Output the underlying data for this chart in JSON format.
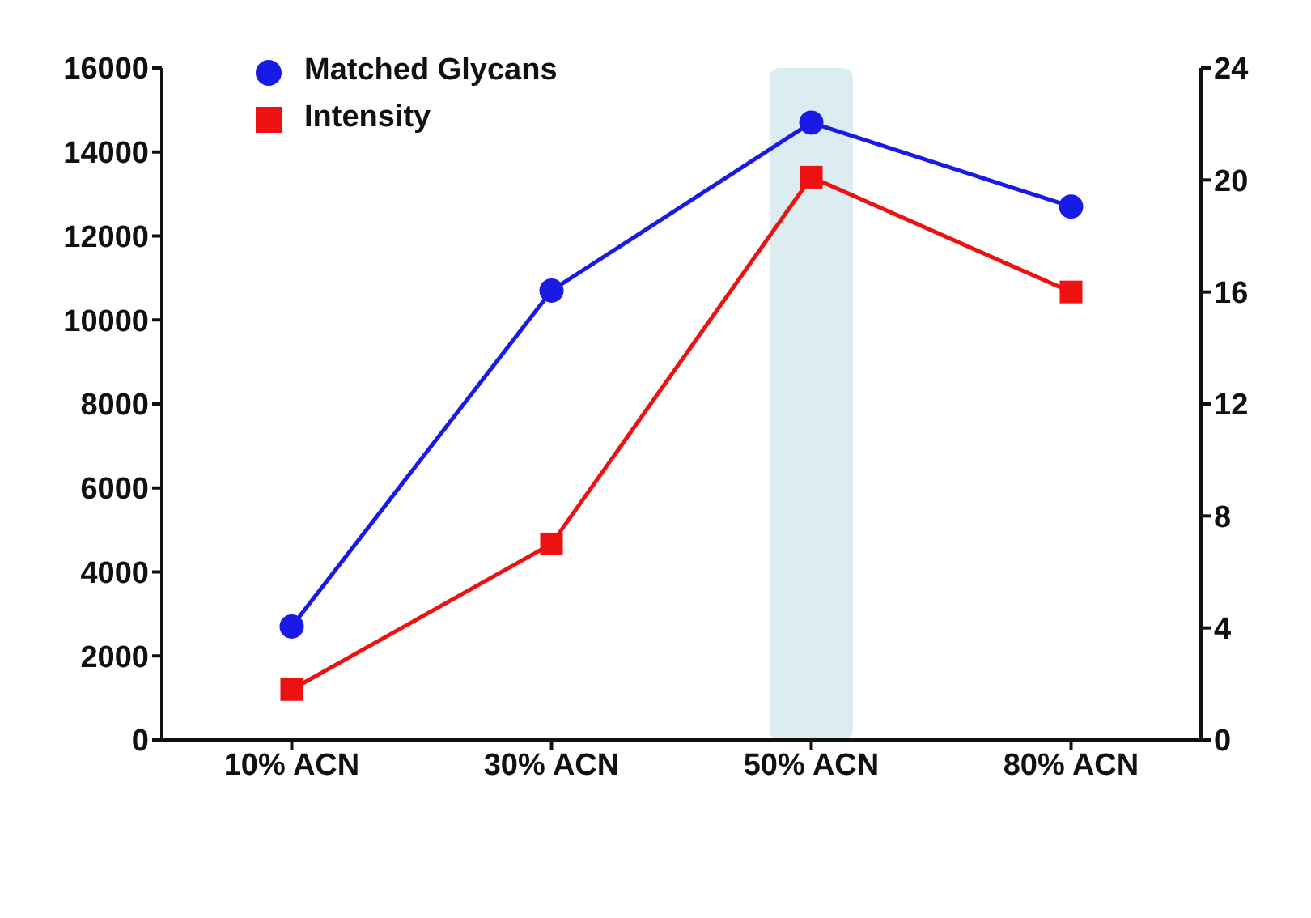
{
  "chart_data": {
    "type": "line",
    "categories": [
      "10% ACN",
      "30% ACN",
      "50% ACN",
      "80% ACN"
    ],
    "series": [
      {
        "name": "Matched Glycans",
        "color": "#1a1ae6",
        "values": [
          2700,
          10700,
          14700,
          12700
        ],
        "marker": "circle"
      },
      {
        "name": "Intensity",
        "color": "#ee1111",
        "values": [
          1.8,
          7,
          20.1,
          16
        ],
        "axis": "y2",
        "marker": "square"
      }
    ],
    "ylim": [
      0,
      16000
    ],
    "yticks": [
      0,
      2000,
      4000,
      6000,
      8000,
      10000,
      12000,
      14000,
      16000
    ],
    "y2lim": [
      0,
      24
    ],
    "y2ticks": [
      0,
      4,
      8,
      12,
      16,
      20,
      24
    ],
    "bands": [
      {
        "axis": "x",
        "from": "50% ACN",
        "to": "50% ACN",
        "color": "#d6eaf0"
      }
    ],
    "grid": false,
    "legend": "top left"
  }
}
